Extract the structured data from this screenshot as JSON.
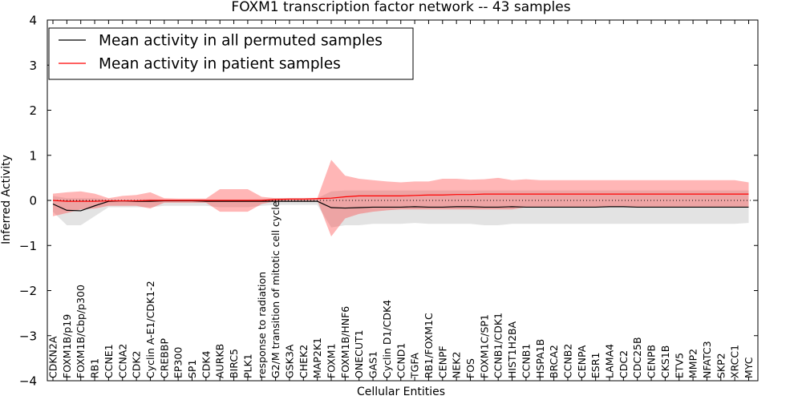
{
  "chart_data": {
    "type": "line",
    "title": "FOXM1 transcription factor network -- 43 samples",
    "xlabel": "Cellular Entities",
    "ylabel": "Inferred Activity",
    "ylim": [
      -4,
      4
    ],
    "yticks": [
      "4",
      "3",
      "2",
      "1",
      "0",
      "−1",
      "−2",
      "−3",
      "−4"
    ],
    "ytick_values": [
      4,
      3,
      2,
      1,
      0,
      -1,
      -2,
      -3,
      -4
    ],
    "legend_position": "top-left",
    "categories": [
      "CDKN2A",
      "FOXM1B/p19",
      "FOXM1B/Cbp/p300",
      "RB1",
      "CCNE1",
      "CCNA2",
      "CDK2",
      "Cyclin A-E1/CDK1-2",
      "CREBBP",
      "EP300",
      "SP1",
      "CDK4",
      "AURKB",
      "BIRC5",
      "PLK1",
      "response to radiation",
      "G2/M transition of mitotic cell cycle",
      "GSK3A",
      "CHEK2",
      "MAP2K1",
      "FOXM1",
      "FOXM1B/HNF6",
      "ONECUT1",
      "GAS1",
      "Cyclin D1/CDK4",
      "CCND1",
      "TGFA",
      "RB1/FOXM1C",
      "CENPF",
      "NEK2",
      "FOS",
      "FOXM1C/SP1",
      "CCNB1/CDK1",
      "HIST1H2BA",
      "CCNB1",
      "HSPA1B",
      "BRCA2",
      "CCNB2",
      "CENPA",
      "ESR1",
      "LAMA4",
      "CDC2",
      "CDC25B",
      "CENPB",
      "CKS1B",
      "ETV5",
      "MMP2",
      "NFATC3",
      "SKP2",
      "XRCC1",
      "MYC"
    ],
    "series": [
      {
        "name": "Mean activity in all permuted samples",
        "color": "#000000",
        "values": [
          -0.08,
          -0.22,
          -0.23,
          -0.12,
          -0.02,
          -0.01,
          -0.02,
          -0.02,
          -0.01,
          -0.01,
          -0.01,
          -0.02,
          -0.02,
          -0.02,
          -0.02,
          -0.02,
          -0.02,
          -0.02,
          -0.02,
          -0.02,
          -0.16,
          -0.17,
          -0.16,
          -0.15,
          -0.15,
          -0.15,
          -0.14,
          -0.15,
          -0.15,
          -0.14,
          -0.14,
          -0.15,
          -0.15,
          -0.14,
          -0.15,
          -0.15,
          -0.15,
          -0.15,
          -0.15,
          -0.15,
          -0.14,
          -0.14,
          -0.15,
          -0.15,
          -0.15,
          -0.15,
          -0.15,
          -0.15,
          -0.15,
          -0.15,
          -0.15
        ],
        "band_upper": [
          0.1,
          0.05,
          0.05,
          0.05,
          0.02,
          0.02,
          0.02,
          0.03,
          0.02,
          0.02,
          0.02,
          0.02,
          0.02,
          0.02,
          0.02,
          0.03,
          0.05,
          0.05,
          0.05,
          0.05,
          0.2,
          0.22,
          0.22,
          0.22,
          0.22,
          0.22,
          0.22,
          0.22,
          0.22,
          0.22,
          0.22,
          0.22,
          0.22,
          0.22,
          0.22,
          0.22,
          0.22,
          0.22,
          0.22,
          0.22,
          0.22,
          0.22,
          0.22,
          0.22,
          0.22,
          0.22,
          0.22,
          0.22,
          0.22,
          0.22,
          0.22
        ],
        "band_lower": [
          -0.25,
          -0.55,
          -0.55,
          -0.35,
          -0.15,
          -0.15,
          -0.15,
          -0.15,
          -0.12,
          -0.12,
          -0.12,
          -0.12,
          -0.15,
          -0.15,
          -0.15,
          -0.12,
          -0.1,
          -0.1,
          -0.1,
          -0.1,
          -0.6,
          -0.55,
          -0.55,
          -0.52,
          -0.52,
          -0.52,
          -0.5,
          -0.52,
          -0.52,
          -0.52,
          -0.52,
          -0.55,
          -0.55,
          -0.52,
          -0.52,
          -0.52,
          -0.52,
          -0.52,
          -0.52,
          -0.52,
          -0.52,
          -0.52,
          -0.52,
          -0.52,
          -0.52,
          -0.52,
          -0.52,
          -0.52,
          -0.52,
          -0.52,
          -0.5
        ]
      },
      {
        "name": "Mean activity in patient samples",
        "color": "#ff0000",
        "values": [
          0.0,
          -0.02,
          -0.02,
          -0.02,
          -0.01,
          -0.01,
          -0.01,
          0.0,
          0.0,
          0.0,
          0.0,
          0.0,
          0.0,
          0.0,
          0.0,
          0.0,
          0.02,
          0.03,
          0.03,
          0.04,
          0.05,
          0.08,
          0.1,
          0.1,
          0.1,
          0.1,
          0.11,
          0.12,
          0.12,
          0.13,
          0.13,
          0.14,
          0.14,
          0.14,
          0.14,
          0.14,
          0.14,
          0.14,
          0.14,
          0.14,
          0.14,
          0.14,
          0.14,
          0.14,
          0.14,
          0.14,
          0.14,
          0.14,
          0.14,
          0.14,
          0.14
        ],
        "band_upper": [
          0.15,
          0.18,
          0.2,
          0.15,
          0.05,
          0.1,
          0.12,
          0.18,
          0.05,
          0.04,
          0.04,
          0.04,
          0.25,
          0.25,
          0.25,
          0.08,
          0.05,
          0.05,
          0.05,
          0.05,
          0.9,
          0.55,
          0.48,
          0.45,
          0.42,
          0.4,
          0.42,
          0.42,
          0.48,
          0.48,
          0.46,
          0.47,
          0.5,
          0.45,
          0.47,
          0.45,
          0.45,
          0.45,
          0.45,
          0.45,
          0.45,
          0.45,
          0.45,
          0.45,
          0.45,
          0.45,
          0.45,
          0.45,
          0.45,
          0.45,
          0.4
        ],
        "band_lower": [
          -0.35,
          -0.28,
          -0.2,
          -0.18,
          -0.12,
          -0.12,
          -0.12,
          -0.18,
          -0.05,
          -0.05,
          -0.05,
          -0.05,
          -0.25,
          -0.25,
          -0.25,
          -0.08,
          -0.02,
          -0.02,
          -0.02,
          0.0,
          -0.8,
          -0.4,
          -0.3,
          -0.25,
          -0.22,
          -0.2,
          -0.2,
          -0.2,
          -0.2,
          -0.2,
          -0.2,
          -0.2,
          -0.2,
          -0.2,
          -0.15,
          -0.15,
          -0.15,
          -0.15,
          -0.15,
          -0.15,
          -0.15,
          -0.15,
          -0.15,
          -0.15,
          -0.15,
          -0.15,
          -0.15,
          -0.15,
          -0.15,
          -0.15,
          -0.15
        ]
      }
    ],
    "reference_line": {
      "value": 0,
      "style": "dotted"
    },
    "grid": false
  }
}
